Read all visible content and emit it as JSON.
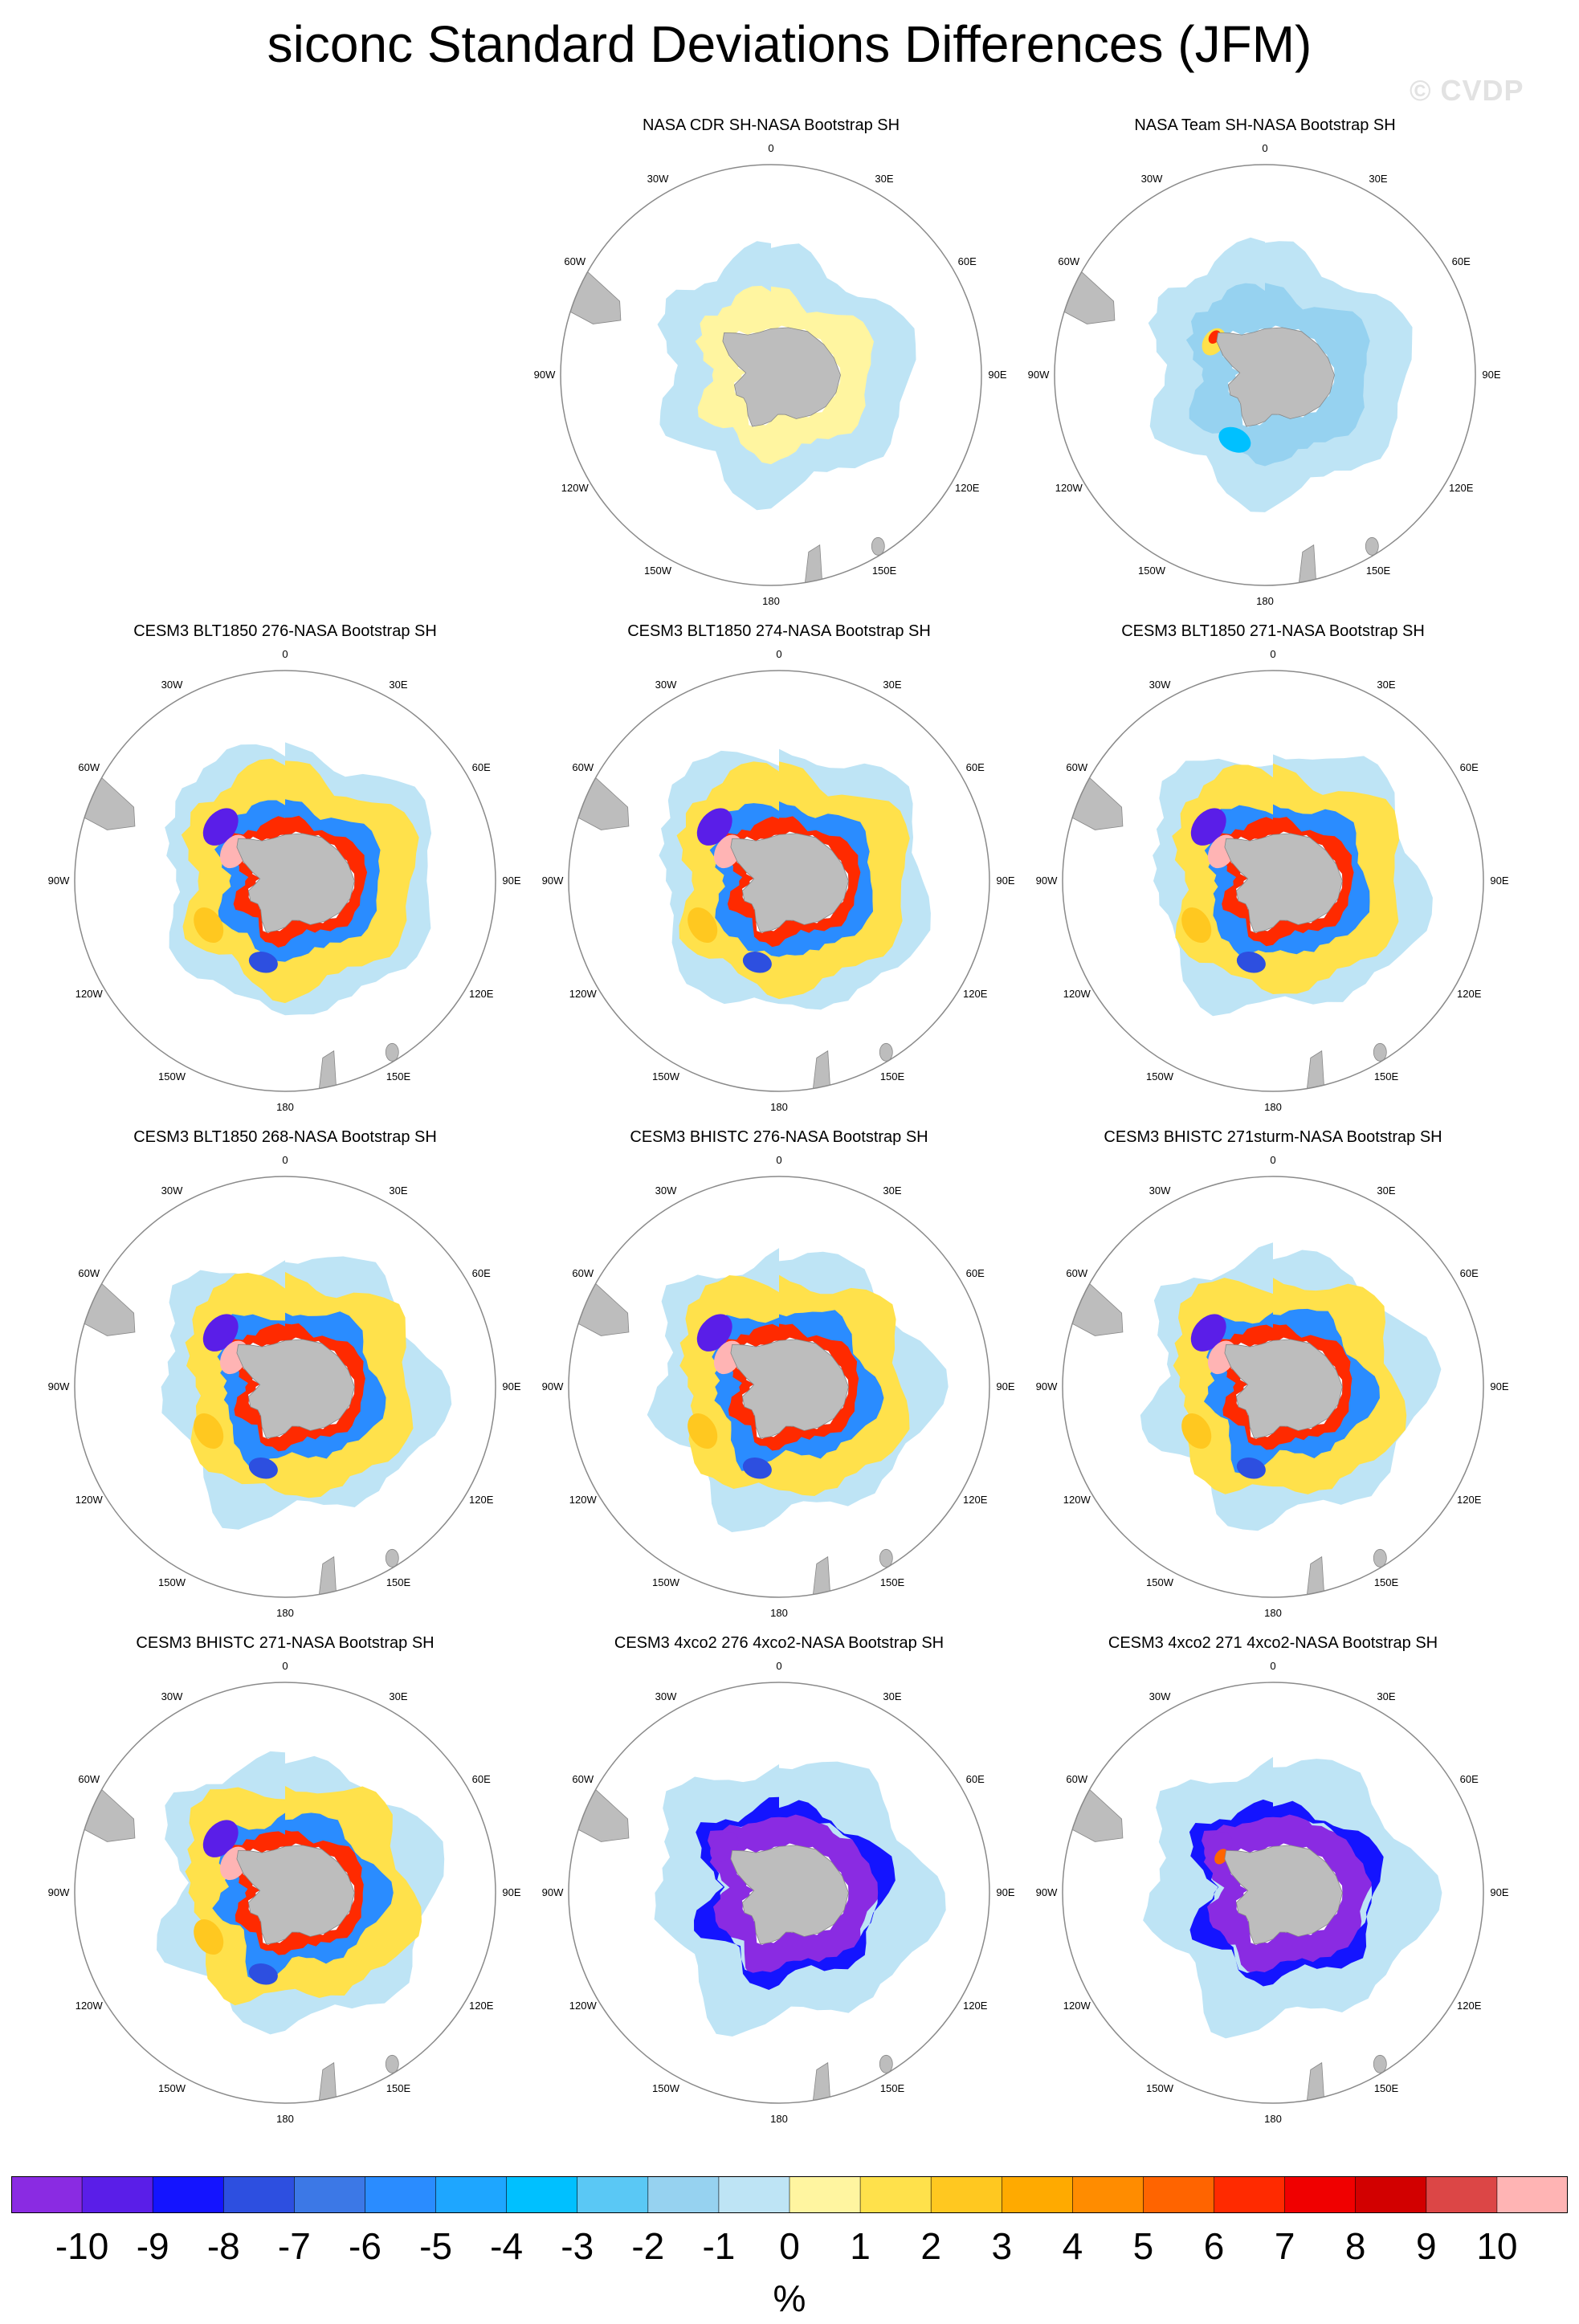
{
  "title": "siconc Standard Deviations Differences (JFM)",
  "watermark": "© CVDP",
  "longitude_labels": [
    "0",
    "30E",
    "60E",
    "90E",
    "120E",
    "150E",
    "180",
    "150W",
    "120W",
    "90W",
    "60W",
    "30W"
  ],
  "panels": [
    {
      "title": "NASA CDR SH-NASA Bootstrap SH",
      "pattern": "cdr"
    },
    {
      "title": "NASA Team SH-NASA Bootstrap SH",
      "pattern": "team"
    },
    {
      "title": "CESM3 BLT1850 276-NASA Bootstrap SH",
      "pattern": "model"
    },
    {
      "title": "CESM3 BLT1850 274-NASA Bootstrap SH",
      "pattern": "model"
    },
    {
      "title": "CESM3 BLT1850 271-NASA Bootstrap SH",
      "pattern": "model"
    },
    {
      "title": "CESM3 BLT1850 268-NASA Bootstrap SH",
      "pattern": "model"
    },
    {
      "title": "CESM3 BHISTC 276-NASA Bootstrap SH",
      "pattern": "model"
    },
    {
      "title": "CESM3 BHISTC 271sturm-NASA Bootstrap SH",
      "pattern": "model"
    },
    {
      "title": "CESM3 BHISTC 271-NASA Bootstrap SH",
      "pattern": "model"
    },
    {
      "title": "CESM3 4xco2 276 4xco2-NASA Bootstrap SH",
      "pattern": "co2"
    },
    {
      "title": "CESM3 4xco2 271 4xco2-NASA Bootstrap SH",
      "pattern": "co2"
    }
  ],
  "colorbar": {
    "colors": [
      "#8a2be2",
      "#5a1ee8",
      "#1414ff",
      "#2d4fe0",
      "#3c78e6",
      "#2a8cff",
      "#1ea6ff",
      "#00c0ff",
      "#5ac8f5",
      "#96d2f0",
      "#bee4f5",
      "#fff5a0",
      "#ffe14b",
      "#ffc820",
      "#ffaa00",
      "#ff8c00",
      "#ff6400",
      "#ff2a00",
      "#f00000",
      "#d20000",
      "#dc4646",
      "#ffb4b4"
    ],
    "tick_labels": [
      "-10",
      "-9",
      "-8",
      "-7",
      "-6",
      "-5",
      "-4",
      "-3",
      "-2",
      "-1",
      "0",
      "1",
      "2",
      "3",
      "4",
      "5",
      "6",
      "7",
      "8",
      "9",
      "10"
    ],
    "units": "%"
  }
}
